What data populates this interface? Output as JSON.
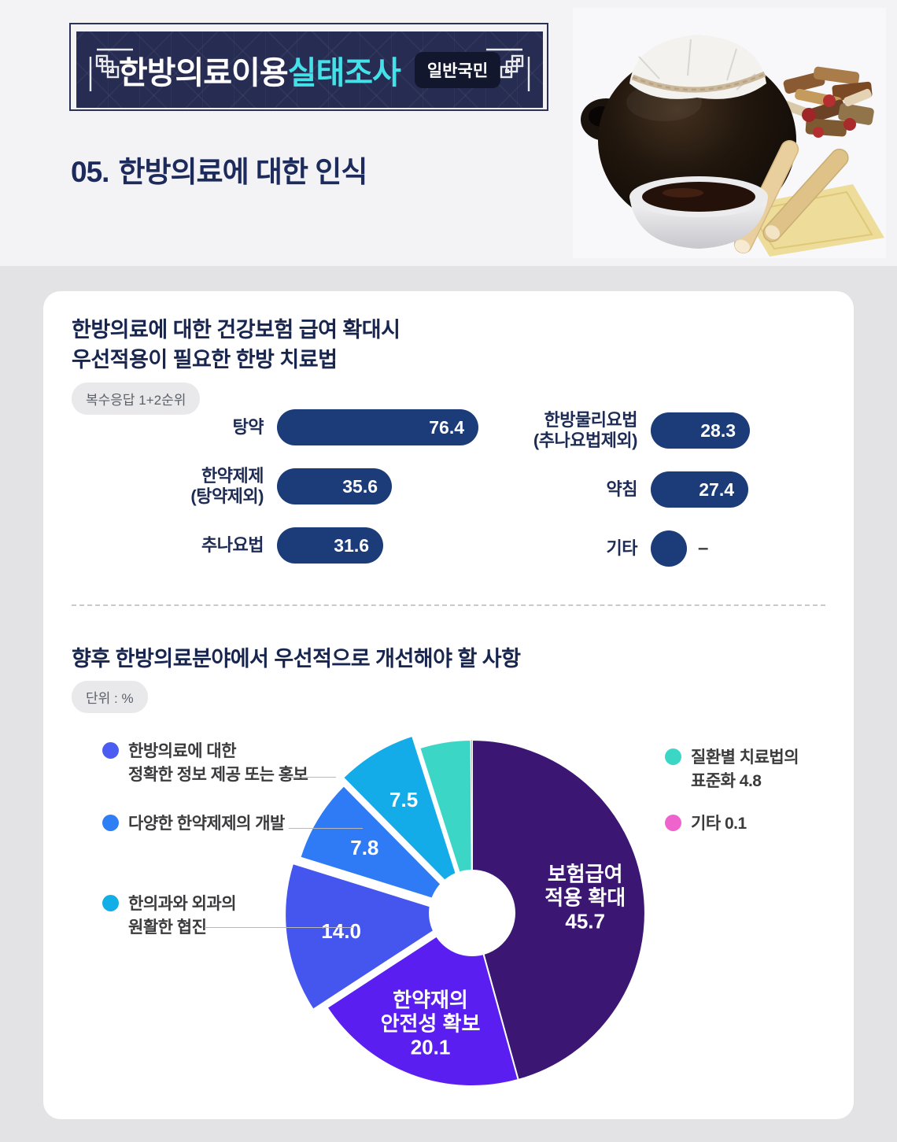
{
  "header": {
    "banner_title_main": "한방의료이용",
    "banner_title_accent": "실태조사",
    "banner_badge": "일반국민",
    "section_number": "05.",
    "section_title": "한방의료에 대한 인식",
    "colors": {
      "banner_bg": "#272c52",
      "accent_cyan": "#45e1e9",
      "badge_bg": "#13172e",
      "title_navy": "#1d2a5c"
    }
  },
  "card": {
    "q1": {
      "title_line1": "한방의료에 대한 건강보험 급여 확대시",
      "title_line2": "우선적용이 필요한 한방 치료법",
      "badge": "복수응답 1+2순위"
    },
    "q2": {
      "title": "향후 한방의료분야에서 우선적으로 개선해야 할 사항",
      "badge": "단위 : %"
    }
  },
  "chart_data": [
    {
      "type": "bar",
      "title": "한방의료에 대한 건강보험 급여 확대시 우선적용이 필요한 한방 치료법",
      "unit": "복수응답 1+2순위 (%)",
      "orientation": "horizontal",
      "bar_color": "#1b3c78",
      "categories": [
        "탕약",
        "한약제제(탕약제외)",
        "추나요법",
        "한방물리요법(추나요법제외)",
        "약침",
        "기타"
      ],
      "values": [
        76.4,
        35.6,
        31.6,
        28.3,
        27.4,
        null
      ],
      "items": [
        {
          "label_lines": [
            "탕약"
          ],
          "value": 76.4,
          "display": "76.4",
          "column": "left"
        },
        {
          "label_lines": [
            "한약제제",
            "(탕약제외)"
          ],
          "value": 35.6,
          "display": "35.6",
          "column": "left"
        },
        {
          "label_lines": [
            "추나요법"
          ],
          "value": 31.6,
          "display": "31.6",
          "column": "left"
        },
        {
          "label_lines": [
            "한방물리요법",
            "(추나요법제외)"
          ],
          "value": 28.3,
          "display": "28.3",
          "column": "right"
        },
        {
          "label_lines": [
            "약침"
          ],
          "value": 27.4,
          "display": "27.4",
          "column": "right"
        },
        {
          "label_lines": [
            "기타"
          ],
          "value": null,
          "display": "–",
          "column": "right"
        }
      ]
    },
    {
      "type": "pie",
      "title": "향후 한방의료분야에서 우선적으로 개선해야 할 사항",
      "unit": "%",
      "donut": true,
      "slices": [
        {
          "label": "보험급여 적용 확대",
          "value": 45.7,
          "color": "#3b1673",
          "explode": 0,
          "label_in_slice": [
            "보험급여",
            "적용 확대",
            "45.7"
          ]
        },
        {
          "label": "한약재의 안전성 확보",
          "value": 20.1,
          "color": "#5a1ef0",
          "explode": 0,
          "label_in_slice": [
            "한약재의",
            "안전성 확보",
            "20.1"
          ]
        },
        {
          "label": "한의과와 외과의 원활한 협진",
          "value": 14.0,
          "color": "#4456ee",
          "explode": 18,
          "label_in_slice": [
            "14.0"
          ]
        },
        {
          "label": "다양한 한약제제의 개발",
          "value": 7.8,
          "color": "#2e7bf5",
          "explode": 10,
          "label_in_slice": [
            "7.8"
          ]
        },
        {
          "label": "한방의료에 대한 정확한 정보 제공 또는 홍보",
          "value": 7.5,
          "color": "#14abe9",
          "explode": 18,
          "label_in_slice": [
            "7.5"
          ]
        },
        {
          "label": "질환별 치료법의 표준화",
          "value": 4.8,
          "color": "#3bd6c6",
          "explode": 0,
          "label_in_slice": []
        },
        {
          "label": "기타",
          "value": 0.1,
          "color": "#f25fd0",
          "explode": 0,
          "label_in_slice": []
        }
      ],
      "legends_left": [
        {
          "dot_color": "#4b5cf2",
          "lines": [
            "한방의료에 대한",
            "정확한 정보 제공 또는 홍보"
          ]
        },
        {
          "dot_color": "#2e7ef5",
          "lines": [
            "다양한 한약제제의 개발"
          ]
        },
        {
          "dot_color": "#12aee8",
          "lines": [
            "한의과와 외과의",
            "원활한 협진"
          ]
        }
      ],
      "legends_right": [
        {
          "dot_color": "#3bd6c6",
          "lines": [
            "질환별 치료법의",
            "표준화 4.8"
          ]
        },
        {
          "dot_color": "#ee64cc",
          "lines": [
            "기타 0.1"
          ]
        }
      ]
    }
  ]
}
